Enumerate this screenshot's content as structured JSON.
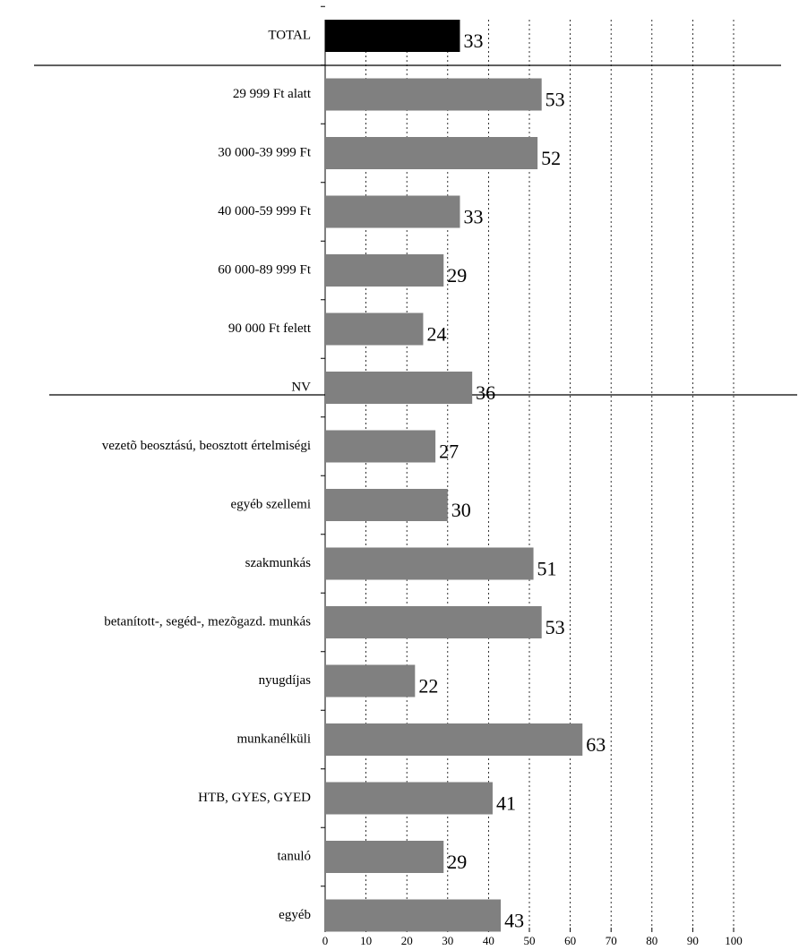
{
  "chart_data": {
    "type": "bar",
    "orientation": "horizontal",
    "categories": [
      "TOTAL",
      "29 999 Ft alatt",
      "30 000-39 999 Ft",
      "40 000-59 999 Ft",
      "60 000-89 999 Ft",
      "90 000 Ft felett",
      "NV",
      "vezetõ beosztású, beosztott értelmiségi",
      "egyéb szellemi",
      "szakmunkás",
      "betanított-, segéd-, mezõgazd. munkás",
      "nyugdíjas",
      "munkanélküli",
      "HTB, GYES, GYED",
      "tanuló",
      "egyéb"
    ],
    "values": [
      33,
      53,
      52,
      33,
      29,
      24,
      36,
      27,
      30,
      51,
      53,
      22,
      63,
      41,
      29,
      43
    ],
    "colors": [
      "#000000",
      "#808080",
      "#808080",
      "#808080",
      "#808080",
      "#808080",
      "#808080",
      "#808080",
      "#808080",
      "#808080",
      "#808080",
      "#808080",
      "#808080",
      "#808080",
      "#808080",
      "#808080"
    ],
    "xlim": [
      0,
      100
    ],
    "xticks": [
      0,
      10,
      20,
      30,
      40,
      50,
      60,
      70,
      80,
      90,
      100
    ],
    "grid": true
  }
}
